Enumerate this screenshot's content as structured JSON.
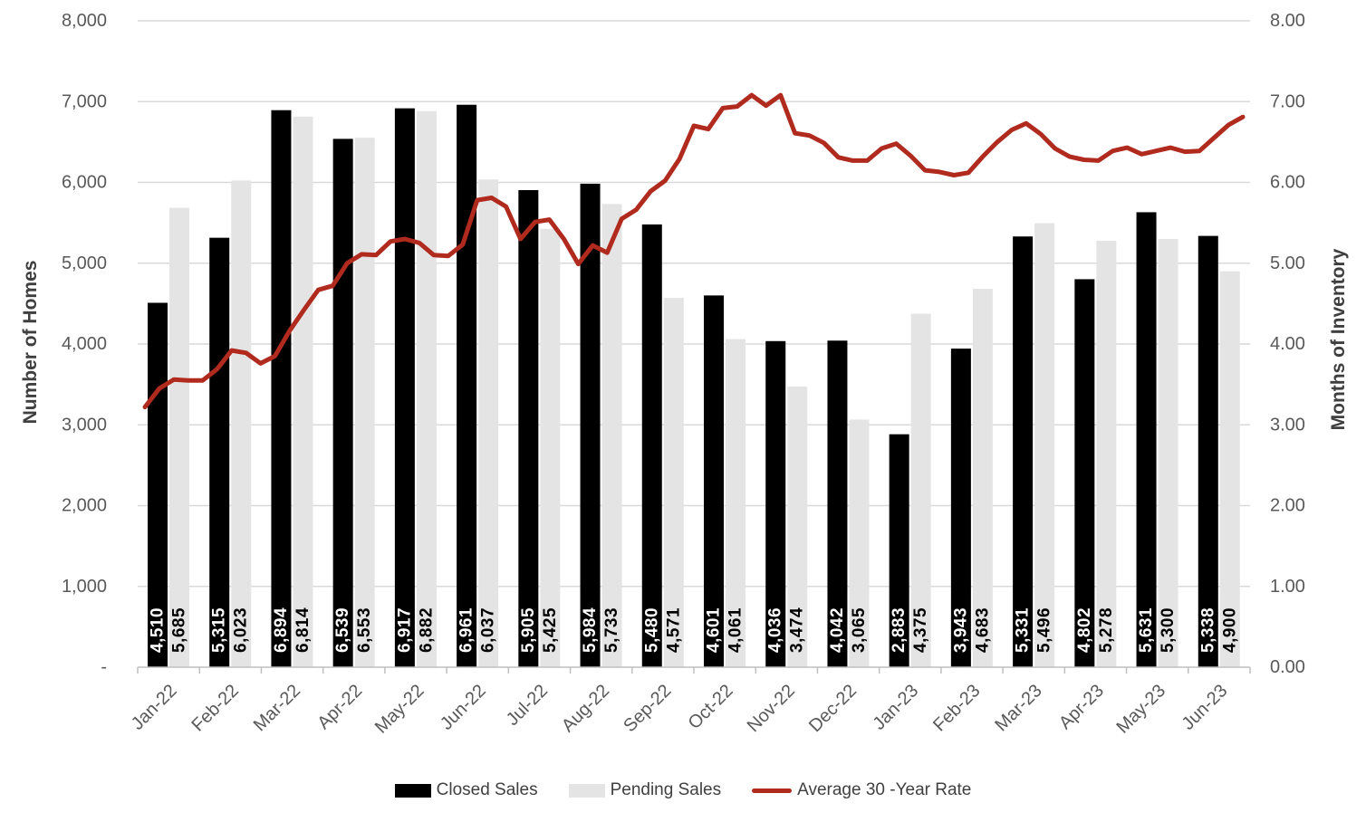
{
  "chart_data": {
    "type": "combo-bar-line",
    "title": "",
    "categories": [
      "Jan-22",
      "Feb-22",
      "Mar-22",
      "Apr-22",
      "May-22",
      "Jun-22",
      "Jul-22",
      "Aug-22",
      "Sep-22",
      "Oct-22",
      "Nov-22",
      "Dec-22",
      "Jan-23",
      "Feb-23",
      "Mar-23",
      "Apr-23",
      "May-23",
      "Jun-23"
    ],
    "series": [
      {
        "name": "Closed Sales",
        "type": "bar",
        "axis": "left",
        "color": "#000000",
        "label_color": "#ffffff",
        "values": [
          4510,
          5315,
          6894,
          6539,
          6917,
          6961,
          5905,
          5984,
          5480,
          4601,
          4036,
          4042,
          2883,
          3943,
          5331,
          4802,
          5631,
          5338
        ]
      },
      {
        "name": "Pending Sales",
        "type": "bar",
        "axis": "left",
        "color": "#e4e4e4",
        "label_color": "#000000",
        "values": [
          5685,
          6023,
          6814,
          6553,
          6882,
          6037,
          5425,
          5733,
          4571,
          4061,
          3474,
          3065,
          4375,
          4683,
          5496,
          5278,
          5300,
          4900
        ]
      },
      {
        "name": "Average 30 -Year Rate",
        "type": "line",
        "axis": "right",
        "color": "#b02a1e",
        "weekly_values": [
          3.22,
          3.45,
          3.56,
          3.55,
          3.55,
          3.69,
          3.92,
          3.89,
          3.76,
          3.85,
          4.16,
          4.42,
          4.67,
          4.72,
          5.0,
          5.11,
          5.1,
          5.27,
          5.3,
          5.25,
          5.1,
          5.09,
          5.23,
          5.78,
          5.81,
          5.7,
          5.3,
          5.51,
          5.54,
          5.3,
          4.99,
          5.22,
          5.13,
          5.55,
          5.66,
          5.89,
          6.02,
          6.29,
          6.7,
          6.66,
          6.92,
          6.94,
          7.08,
          6.95,
          7.08,
          6.61,
          6.58,
          6.49,
          6.31,
          6.27,
          6.27,
          6.42,
          6.48,
          6.33,
          6.15,
          6.13,
          6.09,
          6.12,
          6.32,
          6.5,
          6.65,
          6.73,
          6.6,
          6.42,
          6.32,
          6.28,
          6.27,
          6.39,
          6.43,
          6.35,
          6.39,
          6.43,
          6.38,
          6.39,
          6.55,
          6.71,
          6.81
        ]
      }
    ],
    "left_axis": {
      "title": "Number of Homes",
      "min": 0,
      "max": 8000,
      "tick_step": 1000,
      "tick_labels": [
        "8,000",
        "7,000",
        "6,000",
        "5,000",
        "4,000",
        "3,000",
        "2,000",
        "1,000",
        "-"
      ]
    },
    "right_axis": {
      "title": "Months of Inventory",
      "min": 0,
      "max": 8,
      "tick_step": 1,
      "tick_labels": [
        "8.00",
        "7.00",
        "6.00",
        "5.00",
        "4.00",
        "3.00",
        "2.00",
        "1.00",
        "0.00"
      ]
    },
    "x_axis": {
      "label_rotation_deg": -45
    },
    "legend": {
      "position": "bottom",
      "items": [
        {
          "label": "Closed Sales",
          "swatch": "bar",
          "color": "#000000"
        },
        {
          "label": "Pending Sales",
          "swatch": "bar",
          "color": "#e4e4e4"
        },
        {
          "label": "Average 30 -Year Rate",
          "swatch": "line",
          "color": "#b02a1e"
        }
      ]
    },
    "grid": {
      "horizontal": true,
      "color": "#d9d9d9"
    },
    "axis_line_color": "#bfbfbf",
    "text_color": "#595959"
  }
}
